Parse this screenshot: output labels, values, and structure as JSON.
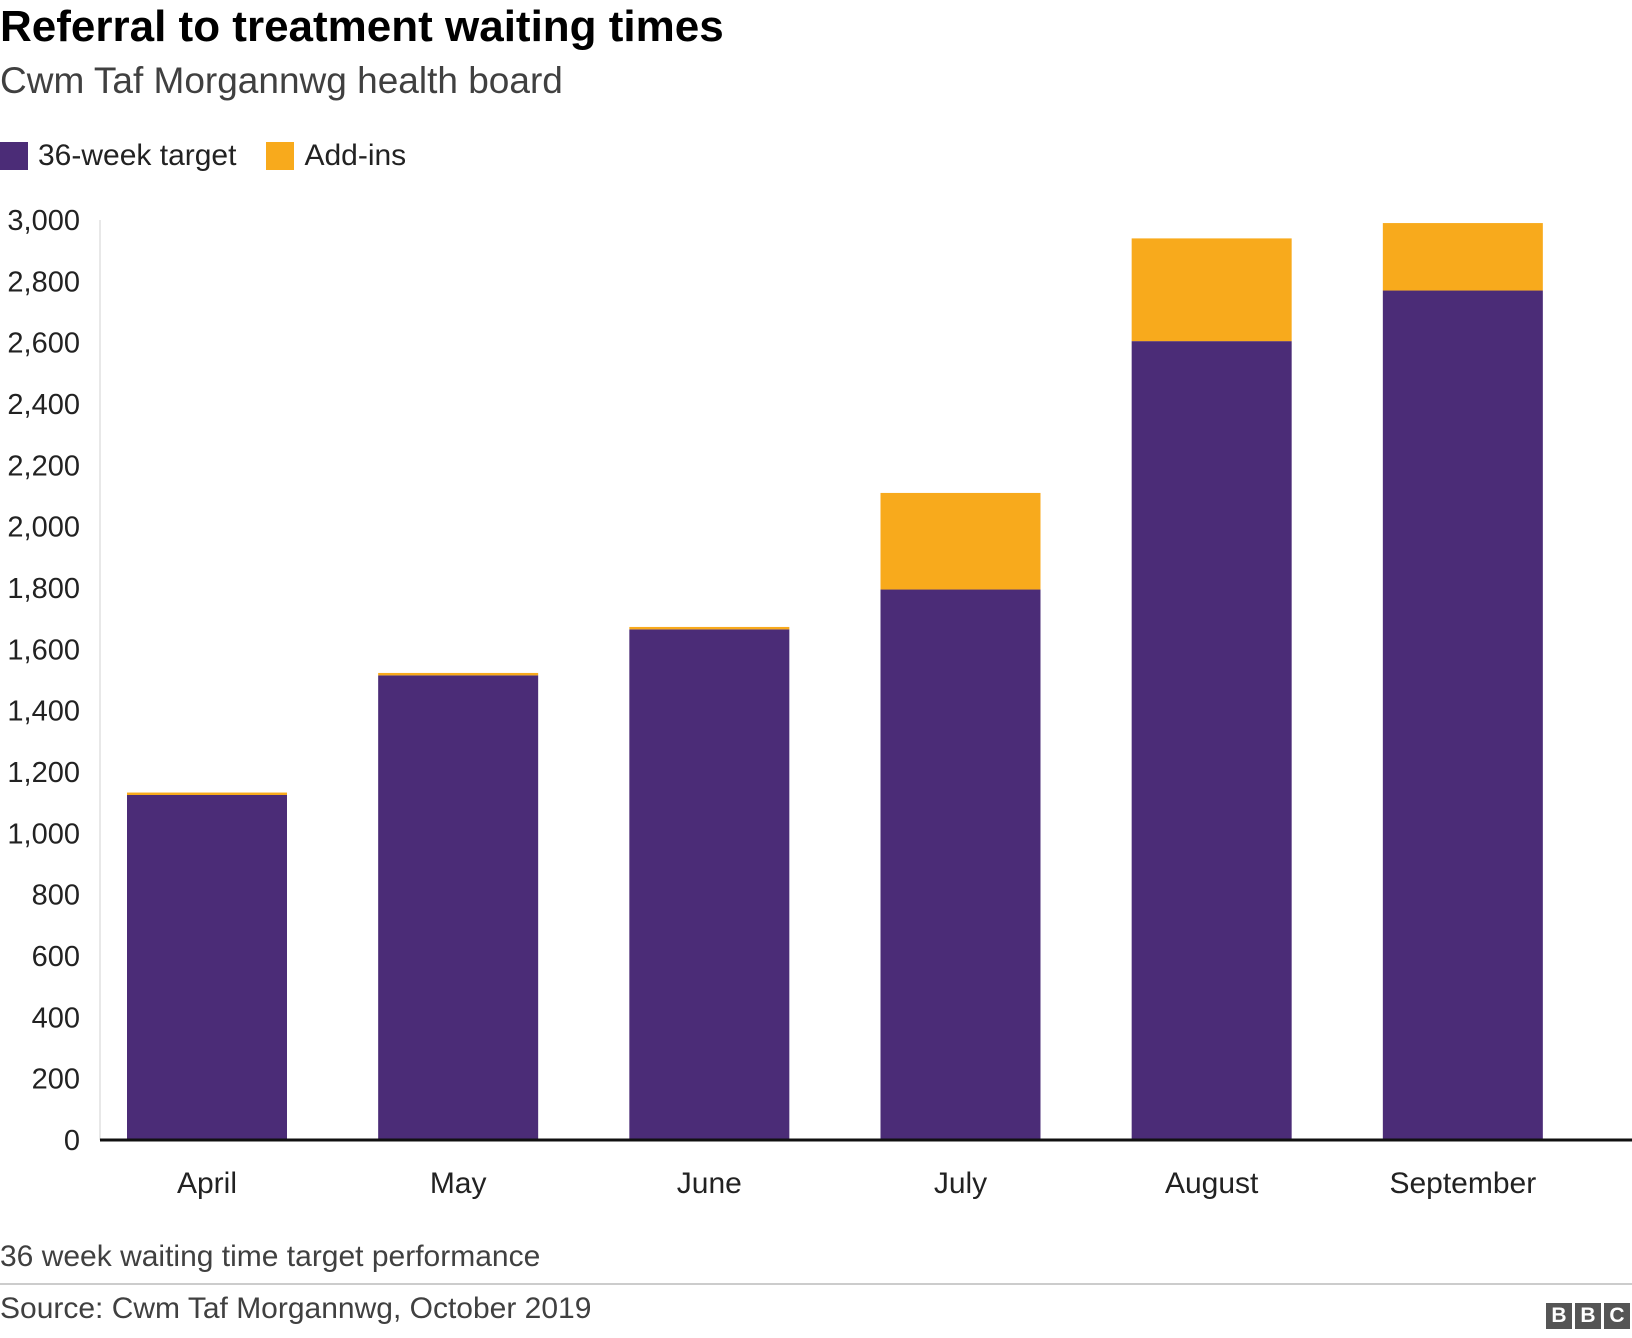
{
  "header": {
    "title": "Referral to treatment waiting times",
    "subtitle": "Cwm Taf Morgannwg health board"
  },
  "legend": [
    {
      "label": "36-week target",
      "color": "#4b2c77"
    },
    {
      "label": "Add-ins",
      "color": "#f8aa1c"
    }
  ],
  "chart_data": {
    "type": "bar",
    "stacked": true,
    "title": "Referral to treatment waiting times",
    "subtitle": "Cwm Taf Morgannwg health board",
    "categories": [
      "April",
      "May",
      "June",
      "July",
      "August",
      "September"
    ],
    "series": [
      {
        "name": "36-week target",
        "color": "#4b2c77",
        "values": [
          1125,
          1515,
          1665,
          1795,
          2605,
          2770
        ]
      },
      {
        "name": "Add-ins",
        "color": "#f8aa1c",
        "values": [
          8,
          8,
          8,
          315,
          335,
          220
        ]
      }
    ],
    "yticks": [
      "0",
      "200",
      "400",
      "600",
      "800",
      "1,000",
      "1,200",
      "1,400",
      "1,600",
      "1,800",
      "2,000",
      "2,200",
      "2,400",
      "2,600",
      "2,800",
      "3,000"
    ],
    "ylim": [
      0,
      3000
    ],
    "xlabel": "",
    "ylabel": "",
    "grid": false,
    "legend_position": "top-left"
  },
  "footer": {
    "caption": "36 week waiting time target performance",
    "source": "Source: Cwm Taf Morgannwg, October 2019",
    "logo_letters": [
      "B",
      "B",
      "C"
    ]
  }
}
